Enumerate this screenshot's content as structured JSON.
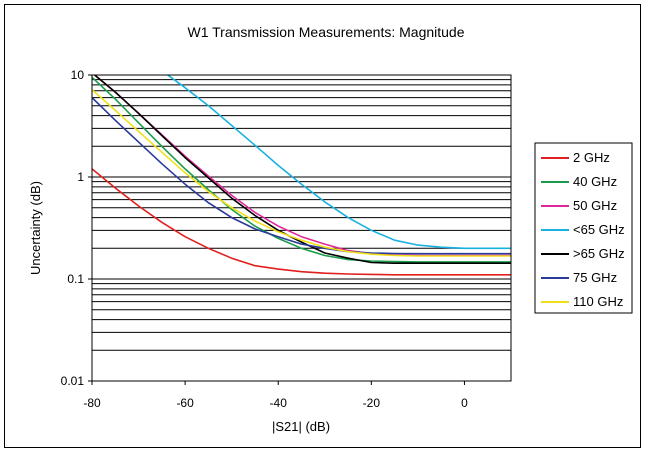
{
  "chart_data": {
    "type": "line",
    "title": "W1 Transmission Measurements: Magnitude",
    "xlabel": "|S21| (dB)",
    "ylabel": "Uncertainty (dB)",
    "xlim": [
      -80,
      10
    ],
    "ylim": [
      0.01,
      10
    ],
    "yscale": "log",
    "grid": "horizontal minor and major gridlines",
    "legend_position": "right",
    "x_ticks": [
      "-80",
      "-60",
      "-40",
      "-20",
      "0"
    ],
    "y_ticks": [
      "0.01",
      "0.1",
      "1",
      "10"
    ],
    "series": [
      {
        "name": "2 GHz",
        "color": "#e0201e",
        "x": [
          -80,
          -75,
          -70,
          -65,
          -60,
          -55,
          -50,
          -45,
          -40,
          -35,
          -30,
          -25,
          -20,
          -15,
          -10,
          -5,
          0,
          5,
          10
        ],
        "y": [
          1.2,
          0.78,
          0.52,
          0.36,
          0.26,
          0.2,
          0.16,
          0.135,
          0.125,
          0.118,
          0.114,
          0.112,
          0.111,
          0.11,
          0.11,
          0.11,
          0.11,
          0.11,
          0.11
        ]
      },
      {
        "name": "40 GHz",
        "color": "#1a9d4a",
        "x": [
          -80,
          -75,
          -70,
          -65,
          -60,
          -55,
          -50,
          -45,
          -40,
          -35,
          -30,
          -25,
          -20,
          -15,
          -10,
          -5,
          0,
          5,
          10
        ],
        "y": [
          9.5,
          5.8,
          3.4,
          2.0,
          1.2,
          0.75,
          0.48,
          0.33,
          0.25,
          0.2,
          0.17,
          0.155,
          0.15,
          0.148,
          0.147,
          0.147,
          0.147,
          0.147,
          0.147
        ]
      },
      {
        "name": "50 GHz",
        "color": "#e0289a",
        "x": [
          -80,
          -75,
          -70,
          -65,
          -60,
          -55,
          -50,
          -45,
          -40,
          -35,
          -30,
          -25,
          -20,
          -15,
          -10,
          -5,
          0,
          5,
          10
        ],
        "y": [
          10.5,
          6.8,
          4.2,
          2.6,
          1.6,
          1.02,
          0.66,
          0.45,
          0.33,
          0.26,
          0.22,
          0.19,
          0.178,
          0.172,
          0.17,
          0.17,
          0.17,
          0.17,
          0.17
        ]
      },
      {
        "name": "<65 GHz",
        "color": "#1ab0e0",
        "x": [
          -64,
          -60,
          -55,
          -50,
          -45,
          -40,
          -35,
          -30,
          -25,
          -20,
          -15,
          -10,
          -5,
          0,
          5,
          10
        ],
        "y": [
          10.2,
          7.5,
          5.0,
          3.2,
          2.05,
          1.3,
          0.85,
          0.57,
          0.4,
          0.3,
          0.24,
          0.215,
          0.205,
          0.2,
          0.2,
          0.2
        ]
      },
      {
        "name": ">65 GHz",
        "color": "#000000",
        "x": [
          -80,
          -75,
          -70,
          -65,
          -60,
          -55,
          -50,
          -45,
          -40,
          -35,
          -30,
          -25,
          -20,
          -15,
          -10,
          -5,
          0,
          5,
          10
        ],
        "y": [
          10.5,
          6.8,
          4.2,
          2.55,
          1.55,
          0.98,
          0.62,
          0.42,
          0.3,
          0.23,
          0.18,
          0.16,
          0.145,
          0.143,
          0.143,
          0.143,
          0.143,
          0.143,
          0.143
        ]
      },
      {
        "name": "75 GHz",
        "color": "#2a3a9a",
        "x": [
          -80,
          -75,
          -70,
          -65,
          -60,
          -55,
          -50,
          -45,
          -40,
          -35,
          -30,
          -25,
          -20,
          -15,
          -10,
          -5,
          0,
          5,
          10
        ],
        "y": [
          6.0,
          3.6,
          2.2,
          1.35,
          0.85,
          0.56,
          0.4,
          0.31,
          0.26,
          0.22,
          0.2,
          0.185,
          0.18,
          0.178,
          0.177,
          0.177,
          0.177,
          0.177,
          0.177
        ]
      },
      {
        "name": "110 GHz",
        "color": "#f0e01a",
        "x": [
          -80,
          -75,
          -70,
          -65,
          -60,
          -55,
          -50,
          -45,
          -40,
          -35,
          -30,
          -25,
          -20,
          -15,
          -10,
          -5,
          0,
          5,
          10
        ],
        "y": [
          7.2,
          4.5,
          2.8,
          1.75,
          1.1,
          0.72,
          0.5,
          0.37,
          0.29,
          0.24,
          0.205,
          0.185,
          0.175,
          0.17,
          0.168,
          0.168,
          0.168,
          0.168,
          0.168
        ]
      }
    ]
  }
}
